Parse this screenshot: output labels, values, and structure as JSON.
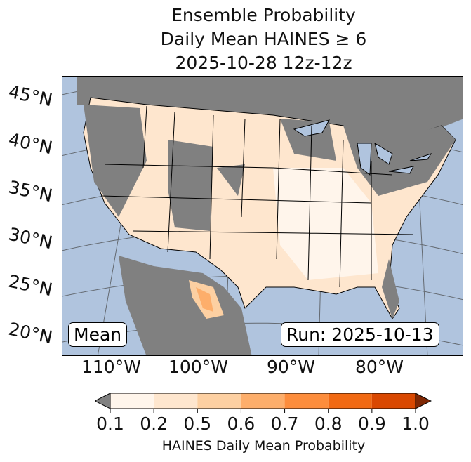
{
  "title": {
    "line1": "Ensemble Probability",
    "line2": "Daily Mean HAINES ≥ 6",
    "line3": "2025-10-28 12z-12z"
  },
  "map": {
    "lat_labels": [
      "45°N",
      "40°N",
      "35°N",
      "30°N",
      "25°N",
      "20°N"
    ],
    "lon_labels": [
      "110°W",
      "100°W",
      "90°W",
      "80°W"
    ],
    "stat_label": "Mean",
    "run_label": "Run: 2025-10-13",
    "colors": {
      "ocean": "#b0c4de",
      "no_data_land": "#808080"
    }
  },
  "colorbar": {
    "ticks": [
      "0.1",
      "0.2",
      "0.5",
      "0.6",
      "0.7",
      "0.8",
      "0.9",
      "1.0"
    ],
    "colors": [
      "#fff5eb",
      "#fee6ce",
      "#fdd0a2",
      "#fdae6b",
      "#fd8d3c",
      "#f16913",
      "#d94801"
    ],
    "under_color": "#808080",
    "over_color": "#7f2704",
    "label": "HAINES Daily Mean Probability"
  }
}
